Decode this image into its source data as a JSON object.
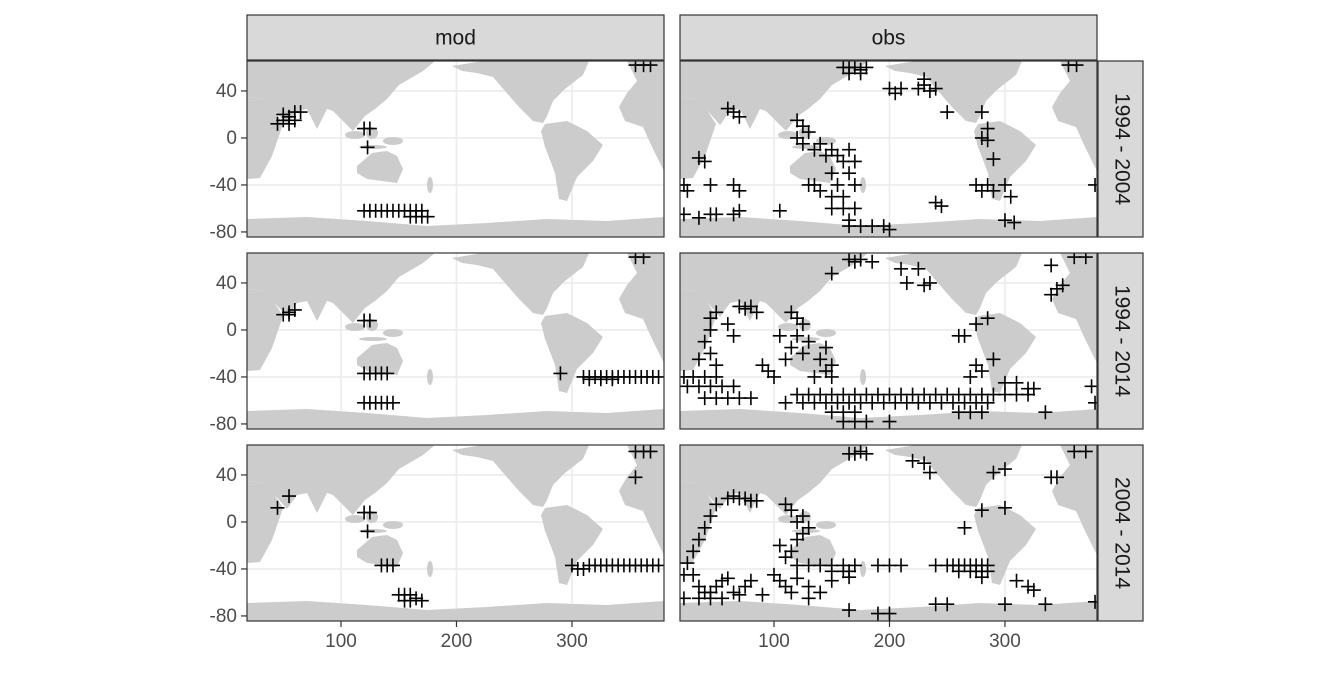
{
  "chart_data": {
    "type": "scatter",
    "columns": [
      "mod",
      "obs"
    ],
    "rows": [
      "1994 - 2004",
      "1994 - 2014",
      "2004 - 2014"
    ],
    "xlim": [
      18.6,
      379.7
    ],
    "ylim": [
      -84.3,
      65.5
    ],
    "xticks": [
      100,
      200,
      300
    ],
    "yticks": [
      -80,
      -40,
      0,
      40
    ],
    "grid": true,
    "color": "#000000",
    "panels": [
      {
        "x": [
          45,
          50,
          55,
          60,
          65,
          50,
          55,
          60,
          120,
          125,
          123,
          120,
          125,
          130,
          135,
          140,
          145,
          150,
          155,
          160,
          165,
          170,
          160,
          165,
          170,
          175,
          355,
          362,
          368
        ],
        "y": [
          12,
          15,
          18,
          22,
          22,
          20,
          12,
          15,
          8,
          8,
          -8,
          -62,
          -62,
          -62,
          -62,
          -62,
          -62,
          -62,
          -62,
          -62,
          -62,
          -62,
          -67,
          -67,
          -67,
          -67,
          62,
          62,
          62
        ]
      },
      {
        "x": [
          160,
          165,
          170,
          175,
          180,
          165,
          175,
          200,
          205,
          210,
          225,
          230,
          235,
          240,
          230,
          250,
          280,
          285,
          280,
          290,
          285,
          275,
          285,
          280,
          290,
          300,
          305,
          300,
          308,
          240,
          245,
          185,
          195,
          200,
          165,
          175,
          150,
          155,
          160,
          165,
          150,
          155,
          160,
          165,
          170,
          150,
          160,
          170,
          165,
          150,
          170,
          120,
          125,
          130,
          120,
          125,
          135,
          140,
          145,
          130,
          135,
          140,
          60,
          65,
          70,
          40,
          35,
          22,
          25,
          45,
          65,
          70,
          22,
          35,
          45,
          50,
          65,
          70,
          105,
          378,
          355,
          362
        ],
        "y": [
          60,
          60,
          60,
          58,
          60,
          55,
          55,
          42,
          38,
          42,
          42,
          45,
          40,
          42,
          50,
          22,
          22,
          8,
          0,
          -18,
          -2,
          -40,
          -40,
          -45,
          -45,
          -40,
          -50,
          -70,
          -72,
          -55,
          -58,
          -75,
          -75,
          -78,
          -75,
          -75,
          -10,
          -15,
          -20,
          -10,
          -30,
          -40,
          -50,
          -30,
          -40,
          -60,
          -60,
          -60,
          -70,
          -50,
          -20,
          15,
          10,
          5,
          0,
          -5,
          -10,
          -5,
          -15,
          -40,
          -40,
          -45,
          25,
          22,
          18,
          -20,
          -17,
          -40,
          -45,
          -40,
          -40,
          -45,
          -65,
          -68,
          -65,
          -65,
          -65,
          -62,
          -62,
          -40,
          62,
          62
        ]
      },
      {
        "x": [
          50,
          55,
          60,
          55,
          120,
          125,
          120,
          125,
          130,
          135,
          140,
          120,
          125,
          130,
          135,
          140,
          145,
          290,
          310,
          315,
          320,
          325,
          330,
          335,
          340,
          345,
          350,
          355,
          360,
          365,
          370,
          375,
          315,
          325,
          335,
          355,
          362
        ],
        "y": [
          13,
          15,
          17,
          13,
          8,
          8,
          -37,
          -37,
          -37,
          -37,
          -37,
          -62,
          -62,
          -62,
          -62,
          -62,
          -62,
          -37,
          -40,
          -40,
          -40,
          -40,
          -40,
          -40,
          -40,
          -40,
          -40,
          -40,
          -40,
          -40,
          -40,
          -40,
          -42,
          -42,
          -42,
          62,
          62
        ]
      },
      {
        "x": [
          120,
          130,
          140,
          150,
          160,
          170,
          180,
          190,
          200,
          210,
          220,
          230,
          240,
          250,
          260,
          270,
          280,
          290,
          300,
          310,
          320,
          110,
          125,
          135,
          145,
          155,
          165,
          175,
          185,
          195,
          205,
          215,
          225,
          235,
          245,
          255,
          265,
          275,
          285,
          150,
          160,
          170,
          260,
          270,
          280,
          160,
          170,
          180,
          200,
          22,
          30,
          40,
          50,
          25,
          35,
          45,
          55,
          65,
          40,
          50,
          60,
          70,
          80,
          45,
          50,
          45,
          40,
          45,
          50,
          35,
          70,
          75,
          80,
          85,
          60,
          65,
          90,
          95,
          100,
          115,
          120,
          125,
          120,
          130,
          115,
          125,
          105,
          110,
          140,
          145,
          150,
          135,
          145,
          150,
          165,
          170,
          175,
          185,
          150,
          210,
          225,
          235,
          215,
          230,
          260,
          265,
          275,
          285,
          290,
          280,
          270,
          275,
          300,
          310,
          320,
          325,
          335,
          340,
          345,
          350,
          340,
          360,
          370,
          375,
          378
        ],
        "y": [
          -55,
          -55,
          -55,
          -55,
          -55,
          -55,
          -55,
          -55,
          -55,
          -55,
          -55,
          -55,
          -55,
          -55,
          -55,
          -55,
          -55,
          -55,
          -55,
          -55,
          -55,
          -62,
          -62,
          -62,
          -62,
          -62,
          -62,
          -62,
          -62,
          -62,
          -62,
          -62,
          -62,
          -62,
          -62,
          -62,
          -62,
          -62,
          -62,
          -70,
          -70,
          -70,
          -70,
          -70,
          -70,
          -78,
          -78,
          -78,
          -78,
          -40,
          -40,
          -40,
          -40,
          -48,
          -48,
          -48,
          -48,
          -48,
          -58,
          -58,
          -58,
          -58,
          -58,
          10,
          15,
          0,
          -10,
          -20,
          -30,
          -25,
          20,
          18,
          20,
          15,
          5,
          -5,
          -30,
          -35,
          -40,
          15,
          10,
          5,
          -5,
          -10,
          -15,
          -20,
          -5,
          -25,
          -25,
          -35,
          -40,
          -40,
          -15,
          -30,
          60,
          58,
          60,
          58,
          48,
          52,
          52,
          40,
          40,
          38,
          -5,
          -5,
          5,
          10,
          -25,
          -35,
          -40,
          -30,
          -45,
          -45,
          -50,
          -50,
          -70,
          30,
          35,
          38,
          55,
          62,
          62,
          -48,
          -62
        ]
      },
      {
        "x": [
          45,
          55,
          120,
          125,
          123,
          135,
          140,
          145,
          150,
          155,
          160,
          165,
          170,
          155,
          160,
          355,
          355,
          362,
          368,
          300,
          305,
          310,
          315,
          320,
          325,
          330,
          335,
          340,
          345,
          350,
          355,
          360,
          365,
          370,
          375
        ],
        "y": [
          12,
          22,
          8,
          8,
          -8,
          -37,
          -37,
          -37,
          -62,
          -62,
          -62,
          -65,
          -67,
          -67,
          -67,
          38,
          60,
          60,
          60,
          -37,
          -40,
          -40,
          -37,
          -37,
          -37,
          -37,
          -37,
          -37,
          -37,
          -37,
          -37,
          -37,
          -37,
          -37,
          -37
        ]
      },
      {
        "x": [
          165,
          170,
          175,
          180,
          220,
          230,
          235,
          290,
          300,
          340,
          345,
          360,
          370,
          280,
          265,
          300,
          120,
          130,
          140,
          150,
          160,
          170,
          190,
          200,
          210,
          240,
          250,
          255,
          260,
          265,
          270,
          275,
          280,
          285,
          160,
          165,
          260,
          270,
          275,
          280,
          285,
          165,
          280,
          320,
          325,
          310,
          335,
          300,
          240,
          250,
          190,
          200,
          165,
          378,
          60,
          65,
          70,
          75,
          80,
          85,
          50,
          45,
          40,
          35,
          30,
          25,
          22,
          22,
          30,
          35,
          40,
          45,
          50,
          55,
          60,
          65,
          70,
          75,
          80,
          55,
          45,
          35,
          110,
          115,
          120,
          125,
          120,
          115,
          125,
          130,
          110,
          105,
          100,
          105,
          110,
          115,
          120,
          130,
          140,
          150,
          150,
          90,
          130
        ],
        "y": [
          58,
          58,
          60,
          58,
          52,
          50,
          42,
          42,
          45,
          38,
          38,
          60,
          60,
          10,
          -5,
          12,
          -37,
          -37,
          -37,
          -37,
          -37,
          -37,
          -37,
          -37,
          -37,
          -37,
          -37,
          -37,
          -37,
          -37,
          -37,
          -37,
          -37,
          -37,
          -42,
          -42,
          -42,
          -42,
          -42,
          -42,
          -42,
          -47,
          -47,
          -55,
          -58,
          -50,
          -70,
          -70,
          -70,
          -70,
          -78,
          -78,
          -75,
          -68,
          20,
          22,
          20,
          20,
          18,
          18,
          15,
          5,
          -5,
          -15,
          -25,
          -35,
          -45,
          -65,
          -45,
          -55,
          -60,
          -60,
          -55,
          -50,
          -48,
          -60,
          -62,
          -55,
          -50,
          -65,
          -65,
          -65,
          15,
          10,
          0,
          5,
          -15,
          -25,
          -10,
          -5,
          -30,
          -20,
          -45,
          -50,
          -55,
          -60,
          -48,
          -55,
          -60,
          -50,
          -42,
          -62,
          -65
        ]
      }
    ]
  }
}
